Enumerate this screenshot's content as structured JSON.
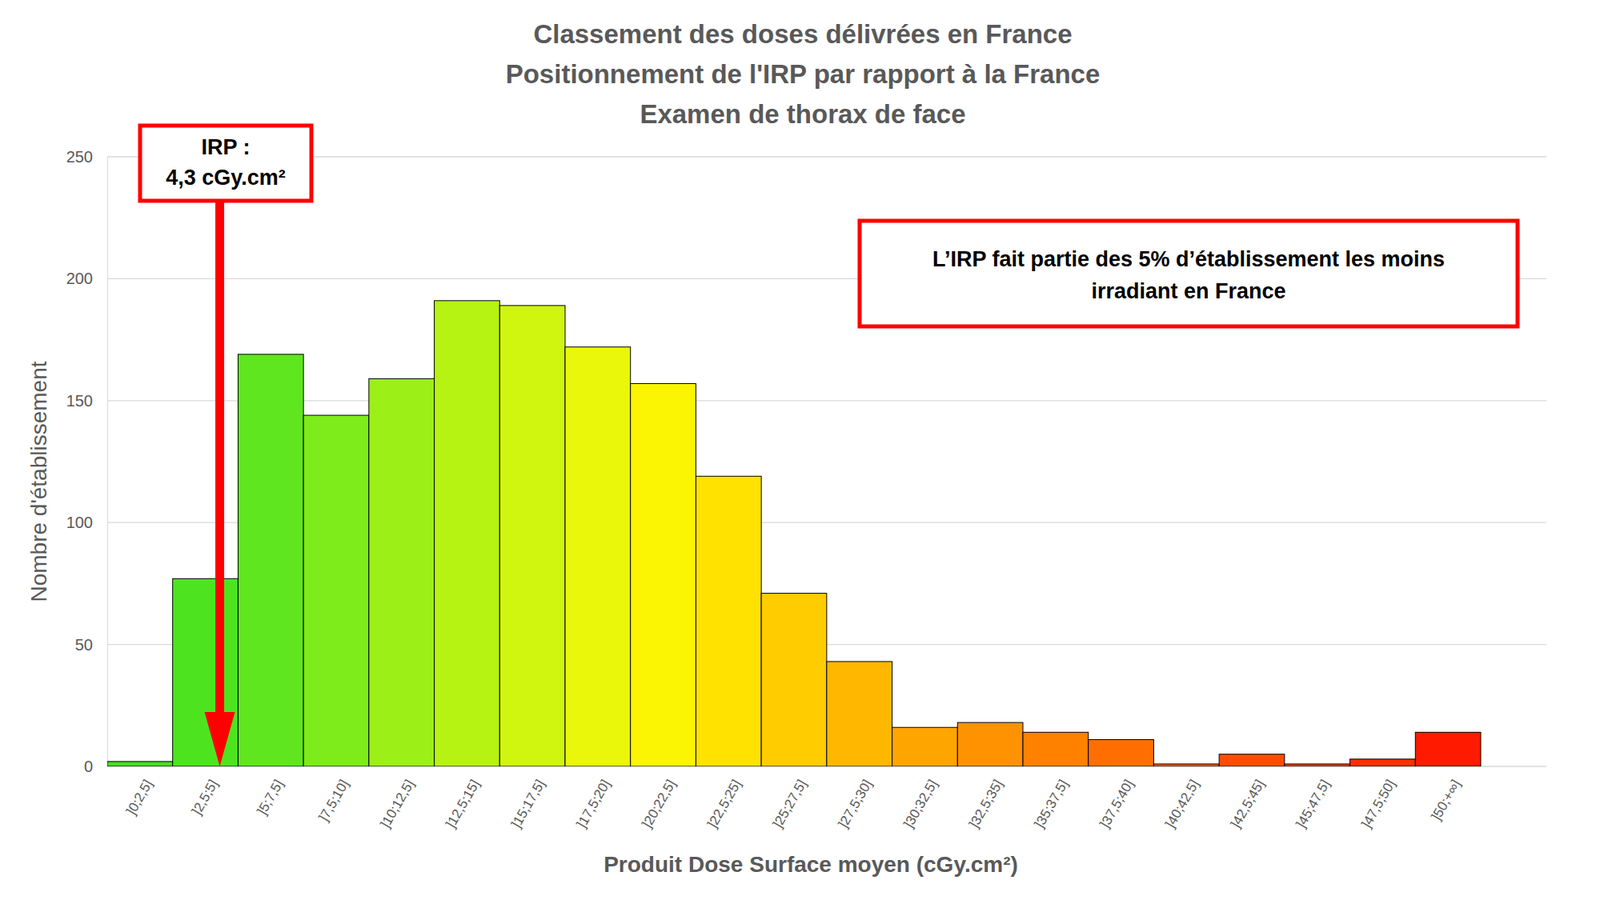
{
  "chart_data": {
    "type": "bar",
    "title": [
      "Classement des doses délivrées en France",
      "Positionnement de l'IRP par rapport à la France",
      "Examen de thorax de face"
    ],
    "x_label": "Produit Dose Surface moyen (cGy.cm²)",
    "y_label": "Nombre d'établissement",
    "categories": [
      "]0;2,5]",
      "]2,5;5]",
      "]5;7,5]",
      "]7,5;10]",
      "]10;12,5]",
      "]12,5;15]",
      "]15;17,5]",
      "]17,5;20]",
      "]20;22,5]",
      "]22,5;25]",
      "]25;27,5]",
      "]27,5;30]",
      "]30;32,5]",
      "]32,5;35]",
      "]35;37,5]",
      "]37,5;40]",
      "]40;42,5]",
      "]42,5;45]",
      "]45;47,5]",
      "]47,5;50]",
      "]50;+∞]"
    ],
    "values": [
      2,
      77,
      169,
      144,
      159,
      191,
      189,
      172,
      157,
      119,
      71,
      43,
      16,
      18,
      14,
      11,
      1,
      5,
      1,
      3,
      14
    ],
    "colors": [
      "#45df20",
      "#4de41f",
      "#5fe61e",
      "#7eeb1a",
      "#9cef17",
      "#b6f212",
      "#d0f50e",
      "#eaf70a",
      "#fbf504",
      "#ffe200",
      "#ffcc00",
      "#ffb700",
      "#ffa500",
      "#ff9200",
      "#ff8100",
      "#ff6e00",
      "#ff5c00",
      "#ff4d00",
      "#ff3d00",
      "#ff2e00",
      "#ff1a00"
    ],
    "ylim": [
      0,
      250
    ],
    "yticks": [
      0,
      50,
      100,
      150,
      200,
      250
    ],
    "grid": true,
    "annotations": [
      {
        "text": [
          "IRP :",
          "4,3 cGy.cm²"
        ]
      },
      {
        "text": [
          "L’IRP fait partie des 5% d’établissement les moins",
          "irradiant en France"
        ]
      }
    ]
  }
}
